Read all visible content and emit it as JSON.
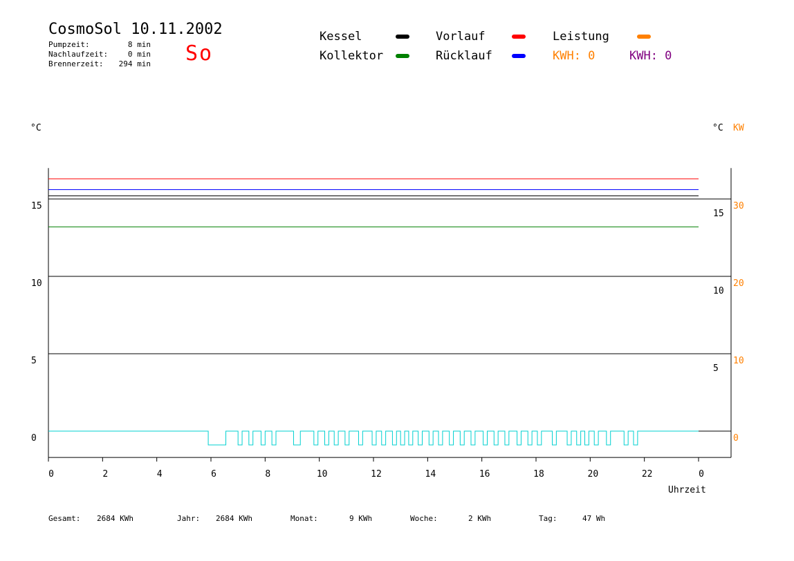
{
  "header": {
    "title": "CosmoSol 10.11.2002",
    "day": "So",
    "stats": [
      {
        "label": "Pumpzeit:",
        "value": "8 min"
      },
      {
        "label": "Nachlaufzeit:",
        "value": "0 min"
      },
      {
        "label": "Brennerzeit:",
        "value": "294 min"
      }
    ]
  },
  "legend": {
    "kessel": {
      "label": "Kessel",
      "color": "#000000"
    },
    "vorlauf": {
      "label": "Vorlauf",
      "color": "#ff0000"
    },
    "leistung": {
      "label": "Leistung",
      "color": "#ff8000"
    },
    "kollektor": {
      "label": "Kollektor",
      "color": "#008000"
    },
    "ruecklauf": {
      "label": "Rücklauf",
      "color": "#0000ff"
    },
    "kwh_orange": "KWH: 0",
    "kwh_purple": "KWH: 0"
  },
  "axes": {
    "left_unit": "°C",
    "right_unit": "°C",
    "right_unit2": "KW",
    "x_label": "Uhrzeit"
  },
  "footer": [
    {
      "label": "Gesamt:",
      "value": "2684 KWh"
    },
    {
      "label": "Jahr:",
      "value": "2684 KWh"
    },
    {
      "label": "Monat:",
      "value": "9 KWh"
    },
    {
      "label": "Woche:",
      "value": "2 KWh"
    },
    {
      "label": "Tag:",
      "value": "47 Wh"
    }
  ],
  "chart_data": {
    "type": "line",
    "title": "CosmoSol 10.11.2002",
    "xlabel": "Uhrzeit",
    "ylabel": "°C",
    "x_ticks": [
      "0",
      "2",
      "4",
      "6",
      "8",
      "10",
      "12",
      "14",
      "16",
      "18",
      "20",
      "22",
      "0"
    ],
    "x_range": [
      0,
      24
    ],
    "y_left_ticks": [
      0,
      5,
      10,
      15
    ],
    "y_left_range": [
      -1.7,
      17
    ],
    "y_right_ticks": [
      5,
      10,
      15
    ],
    "y_right_kw_ticks": [
      0,
      10,
      20,
      30
    ],
    "grid": "horizontal",
    "series": [
      {
        "name": "Vorlauf",
        "color": "#ff0000",
        "x": [
          0,
          24
        ],
        "y": [
          16.3,
          16.3
        ]
      },
      {
        "name": "Rücklauf",
        "color": "#0000ff",
        "x": [
          0,
          24
        ],
        "y": [
          15.6,
          15.6
        ]
      },
      {
        "name": "Kessel",
        "color": "#000000",
        "x": [
          0,
          24
        ],
        "y": [
          15.2,
          15.2
        ]
      },
      {
        "name": "Kollektor",
        "color": "#008000",
        "x": [
          0,
          24
        ],
        "y": [
          13.2,
          13.2
        ]
      }
    ],
    "pump_on_intervals": [
      [
        5.9,
        6.55
      ],
      [
        7.0,
        7.15
      ],
      [
        7.4,
        7.55
      ],
      [
        7.85,
        8.0
      ],
      [
        8.25,
        8.4
      ],
      [
        9.05,
        9.3
      ],
      [
        9.8,
        9.95
      ],
      [
        10.2,
        10.35
      ],
      [
        10.55,
        10.7
      ],
      [
        10.95,
        11.1
      ],
      [
        11.45,
        11.6
      ],
      [
        11.95,
        12.1
      ],
      [
        12.3,
        12.45
      ],
      [
        12.7,
        12.85
      ],
      [
        13.0,
        13.15
      ],
      [
        13.3,
        13.45
      ],
      [
        13.65,
        13.8
      ],
      [
        14.05,
        14.2
      ],
      [
        14.4,
        14.55
      ],
      [
        14.8,
        14.95
      ],
      [
        15.2,
        15.35
      ],
      [
        15.6,
        15.75
      ],
      [
        16.05,
        16.2
      ],
      [
        16.45,
        16.6
      ],
      [
        16.85,
        17.0
      ],
      [
        17.3,
        17.45
      ],
      [
        17.7,
        17.85
      ],
      [
        18.05,
        18.2
      ],
      [
        18.6,
        18.75
      ],
      [
        19.15,
        19.3
      ],
      [
        19.5,
        19.65
      ],
      [
        19.8,
        19.95
      ],
      [
        20.15,
        20.3
      ],
      [
        20.6,
        20.75
      ],
      [
        21.25,
        21.4
      ],
      [
        21.6,
        21.75
      ]
    ]
  }
}
